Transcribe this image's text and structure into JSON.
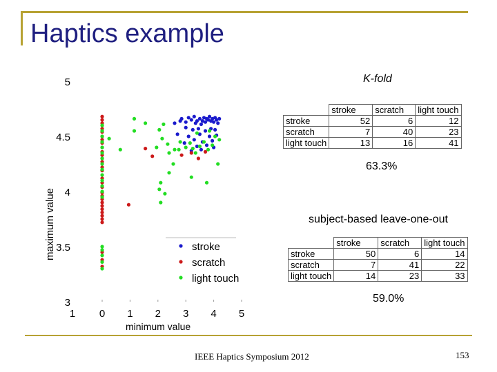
{
  "slide": {
    "title": "Haptics example",
    "footer": "IEEE Haptics Symposium 2012",
    "page_number": "153"
  },
  "kfold": {
    "label": "K-fold",
    "accuracy": "63.3%",
    "table": {
      "columns": [
        "stroke",
        "scratch",
        "light touch"
      ],
      "rows": [
        {
          "label": "stroke",
          "values": [
            "52",
            "6",
            "12"
          ]
        },
        {
          "label": "scratch",
          "values": [
            "7",
            "40",
            "23"
          ]
        },
        {
          "label": "light touch",
          "values": [
            "13",
            "16",
            "41"
          ]
        }
      ]
    }
  },
  "loo": {
    "label": "subject-based leave-one-out",
    "accuracy": "59.0%",
    "table": {
      "columns": [
        "stroke",
        "scratch",
        "light touch"
      ],
      "rows": [
        {
          "label": "stroke",
          "values": [
            "50",
            "6",
            "14"
          ]
        },
        {
          "label": "scratch",
          "values": [
            "7",
            "41",
            "22"
          ]
        },
        {
          "label": "light touch",
          "values": [
            "14",
            "23",
            "33"
          ]
        }
      ]
    }
  },
  "chart_data": {
    "type": "scatter",
    "xlabel": "minimum value",
    "ylabel": "maximum value",
    "xlim": [
      -0.2,
      5
    ],
    "ylim": [
      3,
      5
    ],
    "x_ticks": [
      "0",
      "1",
      "2",
      "3",
      "4",
      "5"
    ],
    "x_stray_tick": "1",
    "y_ticks": [
      "3",
      "3.5",
      "4",
      "4.5",
      "5"
    ],
    "legend_position": "lower-middle",
    "series": [
      {
        "name": "stroke",
        "color": "#1a1acc",
        "points": [
          [
            2.6,
            4.62
          ],
          [
            2.8,
            4.64
          ],
          [
            2.85,
            4.66
          ],
          [
            3.0,
            4.63
          ],
          [
            3.1,
            4.67
          ],
          [
            3.2,
            4.65
          ],
          [
            3.3,
            4.68
          ],
          [
            3.35,
            4.62
          ],
          [
            3.4,
            4.64
          ],
          [
            3.5,
            4.66
          ],
          [
            3.55,
            4.61
          ],
          [
            3.6,
            4.64
          ],
          [
            3.65,
            4.67
          ],
          [
            3.7,
            4.63
          ],
          [
            3.75,
            4.66
          ],
          [
            3.8,
            4.65
          ],
          [
            3.85,
            4.68
          ],
          [
            3.9,
            4.64
          ],
          [
            3.95,
            4.66
          ],
          [
            4.0,
            4.63
          ],
          [
            4.05,
            4.67
          ],
          [
            4.1,
            4.65
          ],
          [
            4.15,
            4.62
          ],
          [
            4.2,
            4.66
          ],
          [
            3.0,
            4.58
          ],
          [
            3.25,
            4.56
          ],
          [
            3.45,
            4.57
          ],
          [
            3.7,
            4.55
          ],
          [
            3.9,
            4.57
          ],
          [
            4.05,
            4.56
          ],
          [
            2.7,
            4.52
          ],
          [
            3.1,
            4.5
          ],
          [
            3.5,
            4.52
          ],
          [
            3.85,
            4.5
          ],
          [
            4.1,
            4.51
          ],
          [
            3.3,
            4.47
          ],
          [
            3.6,
            4.45
          ],
          [
            3.95,
            4.46
          ],
          [
            2.95,
            4.44
          ],
          [
            3.4,
            4.41
          ],
          [
            3.75,
            4.42
          ],
          [
            4.0,
            4.4
          ],
          [
            3.2,
            4.37
          ],
          [
            3.55,
            4.38
          ]
        ]
      },
      {
        "name": "scratch",
        "color": "#cc1a1a",
        "points": [
          [
            0.0,
            4.68
          ],
          [
            0.0,
            4.65
          ],
          [
            0.0,
            4.62
          ],
          [
            0.0,
            4.6
          ],
          [
            0.0,
            4.57
          ],
          [
            0.0,
            4.54
          ],
          [
            0.0,
            4.5
          ],
          [
            0.0,
            4.47
          ],
          [
            0.0,
            4.44
          ],
          [
            0.0,
            4.4
          ],
          [
            0.0,
            4.36
          ],
          [
            0.0,
            4.33
          ],
          [
            0.0,
            4.3
          ],
          [
            0.0,
            4.27
          ],
          [
            0.0,
            4.22
          ],
          [
            0.0,
            4.19
          ],
          [
            0.0,
            4.12
          ],
          [
            0.0,
            4.08
          ],
          [
            0.0,
            4.04
          ],
          [
            0.0,
            3.99
          ],
          [
            0.0,
            3.96
          ],
          [
            0.0,
            3.93
          ],
          [
            0.0,
            3.9
          ],
          [
            0.0,
            3.87
          ],
          [
            0.0,
            3.84
          ],
          [
            0.0,
            3.81
          ],
          [
            0.0,
            3.78
          ],
          [
            0.0,
            3.75
          ],
          [
            0.0,
            3.72
          ],
          [
            0.0,
            3.45
          ],
          [
            0.0,
            3.38
          ],
          [
            0.0,
            3.32
          ],
          [
            1.55,
            4.39
          ],
          [
            1.8,
            4.32
          ],
          [
            0.95,
            3.88
          ],
          [
            3.2,
            4.35
          ],
          [
            3.45,
            4.3
          ],
          [
            2.85,
            4.33
          ],
          [
            3.7,
            4.36
          ]
        ]
      },
      {
        "name": "light touch",
        "color": "#22dd22",
        "points": [
          [
            0.0,
            4.6
          ],
          [
            0.0,
            4.55
          ],
          [
            0.0,
            4.5
          ],
          [
            0.0,
            4.45
          ],
          [
            0.0,
            4.4
          ],
          [
            0.0,
            4.35
          ],
          [
            0.0,
            4.3
          ],
          [
            0.0,
            4.25
          ],
          [
            0.0,
            4.2
          ],
          [
            0.0,
            4.15
          ],
          [
            0.0,
            4.1
          ],
          [
            0.0,
            4.05
          ],
          [
            0.0,
            4.0
          ],
          [
            0.0,
            3.95
          ],
          [
            0.0,
            3.5
          ],
          [
            0.0,
            3.47
          ],
          [
            0.0,
            3.42
          ],
          [
            0.0,
            3.36
          ],
          [
            0.0,
            3.3
          ],
          [
            0.25,
            4.48
          ],
          [
            1.15,
            4.66
          ],
          [
            1.15,
            4.55
          ],
          [
            0.65,
            4.38
          ],
          [
            1.55,
            4.62
          ],
          [
            2.05,
            4.56
          ],
          [
            2.2,
            4.61
          ],
          [
            2.15,
            4.48
          ],
          [
            1.95,
            4.4
          ],
          [
            2.4,
            4.35
          ],
          [
            2.35,
            4.43
          ],
          [
            2.6,
            4.38
          ],
          [
            2.8,
            4.45
          ],
          [
            2.75,
            4.38
          ],
          [
            3.0,
            4.4
          ],
          [
            3.15,
            4.44
          ],
          [
            3.25,
            4.39
          ],
          [
            3.35,
            4.35
          ],
          [
            3.5,
            4.41
          ],
          [
            3.65,
            4.45
          ],
          [
            3.8,
            4.38
          ],
          [
            3.95,
            4.42
          ],
          [
            4.05,
            4.5
          ],
          [
            3.4,
            4.53
          ],
          [
            3.85,
            4.55
          ],
          [
            4.2,
            4.47
          ],
          [
            2.1,
            4.08
          ],
          [
            2.05,
            4.02
          ],
          [
            2.25,
            3.98
          ],
          [
            2.1,
            3.9
          ],
          [
            2.4,
            4.17
          ],
          [
            3.2,
            4.13
          ],
          [
            3.75,
            4.08
          ],
          [
            4.15,
            4.25
          ],
          [
            2.55,
            4.25
          ]
        ]
      }
    ]
  }
}
